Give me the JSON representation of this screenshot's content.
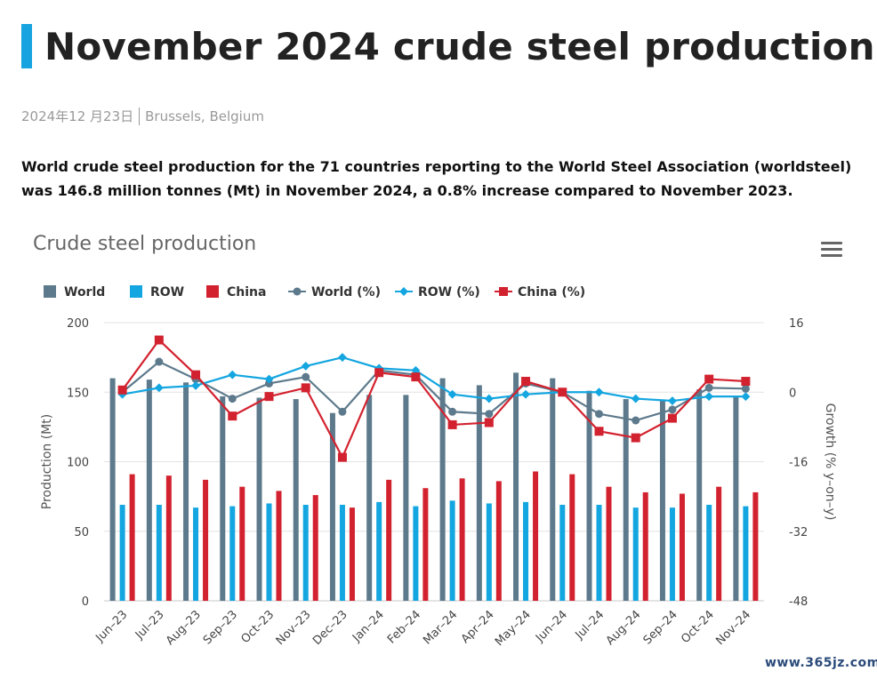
{
  "page": {
    "title": "November 2024 crude steel production",
    "date": "2024年12 月23日",
    "location": "Brussels, Belgium",
    "lead": "World crude steel production for the 71 countries reporting to the World Steel Association (worldsteel) was 146.8 million tonnes (Mt) in November 2024, a 0.8% increase compared to November 2023.",
    "menu_icon": "hamburger-menu-icon",
    "watermark": "www.365jz.com"
  },
  "colors": {
    "accent": "#16a3df",
    "world": "#5d7a8c",
    "row": "#14a6e0",
    "china": "#d3222f"
  },
  "chart_data": {
    "type": "bar",
    "title": "Crude steel production",
    "categories": [
      "Jun–23",
      "Jul–23",
      "Aug–23",
      "Sep–23",
      "Oct–23",
      "Nov–23",
      "Dec–23",
      "Jan–24",
      "Feb–24",
      "Mar–24",
      "Apr–24",
      "May–24",
      "Jun–24",
      "Jul–24",
      "Aug–24",
      "Sep–24",
      "Oct–24",
      "Nov–24"
    ],
    "y_left": {
      "label": "Production (Mt)",
      "min": 0,
      "max": 200,
      "ticks": [
        0,
        50,
        100,
        150,
        200
      ]
    },
    "y_right": {
      "label": "Growth (% y–on–y)",
      "min": -48,
      "max": 16,
      "ticks": [
        -48,
        -32,
        -16,
        0,
        16
      ]
    },
    "legend_position": "top-left",
    "grid": true,
    "series": [
      {
        "name": "World",
        "kind": "bar",
        "axis": "left",
        "values": [
          160,
          159,
          157,
          147,
          146,
          145,
          135,
          148,
          148,
          160,
          155,
          164,
          160,
          151,
          145,
          144,
          152,
          147
        ]
      },
      {
        "name": "ROW",
        "kind": "bar",
        "axis": "left",
        "values": [
          69,
          69,
          67,
          68,
          70,
          69,
          69,
          71,
          68,
          72,
          70,
          71,
          69,
          69,
          67,
          67,
          69,
          68
        ]
      },
      {
        "name": "China",
        "kind": "bar",
        "axis": "left",
        "values": [
          91,
          90,
          87,
          82,
          79,
          76,
          67,
          87,
          81,
          88,
          86,
          93,
          91,
          82,
          78,
          77,
          82,
          78
        ]
      },
      {
        "name": "World (%)",
        "kind": "line",
        "axis": "right",
        "values": [
          0,
          7,
          3,
          -1.5,
          2,
          3.5,
          -4.5,
          5,
          4,
          -4.5,
          -5,
          2,
          0,
          -5,
          -6.5,
          -4,
          1,
          0.8
        ]
      },
      {
        "name": "ROW (%)",
        "kind": "line",
        "axis": "right",
        "values": [
          -0.5,
          1,
          1.5,
          4,
          3,
          6,
          8,
          5.5,
          5,
          -0.5,
          -1.5,
          -0.5,
          0,
          0,
          -1.5,
          -2,
          -1,
          -1
        ]
      },
      {
        "name": "China (%)",
        "kind": "line",
        "axis": "right",
        "values": [
          0.5,
          12,
          4,
          -5.5,
          -1,
          1,
          -15,
          4.5,
          3.5,
          -7.5,
          -7,
          2.5,
          0,
          -9,
          -10.5,
          -6,
          3,
          2.5
        ]
      }
    ]
  }
}
